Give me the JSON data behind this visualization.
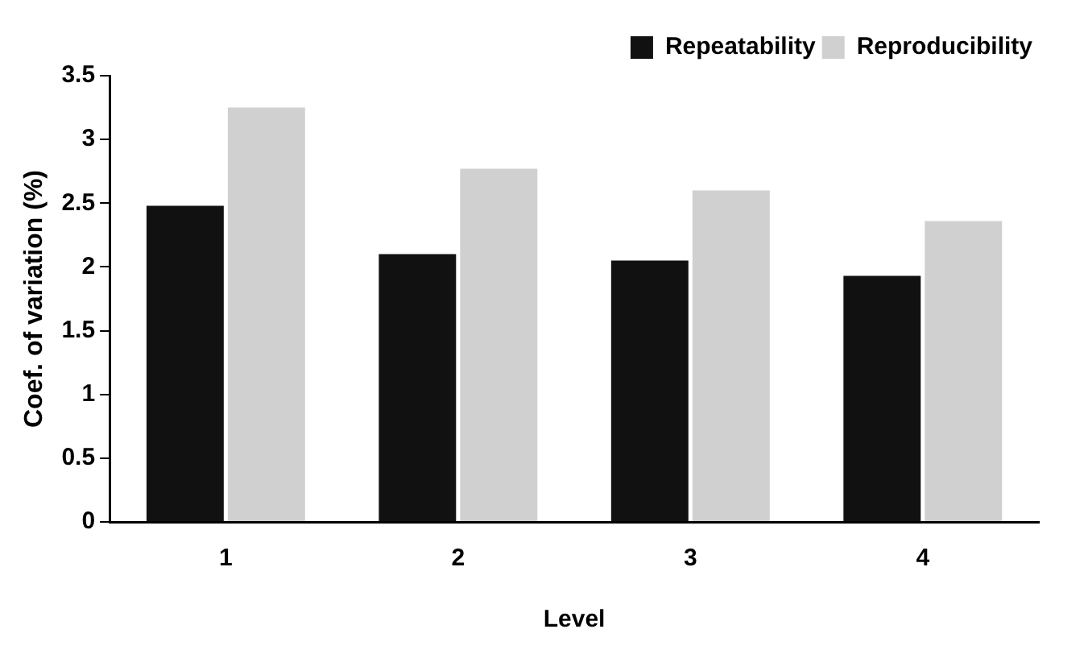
{
  "chart_data": {
    "type": "bar",
    "xlabel": "Level",
    "ylabel": "Coef. of variation (%)",
    "categories": [
      "1",
      "2",
      "3",
      "4"
    ],
    "series": [
      {
        "name": "Repeatability",
        "color": "#111111",
        "values": [
          2.48,
          2.1,
          2.05,
          1.93
        ]
      },
      {
        "name": "Reproducibility",
        "color": "#d0d0d0",
        "values": [
          3.25,
          2.77,
          2.6,
          2.36
        ]
      }
    ],
    "ylim": [
      0,
      3.5
    ],
    "yticks": [
      0,
      0.5,
      1,
      1.5,
      2,
      2.5,
      3,
      3.5
    ],
    "grid": false,
    "legend": "top right"
  }
}
